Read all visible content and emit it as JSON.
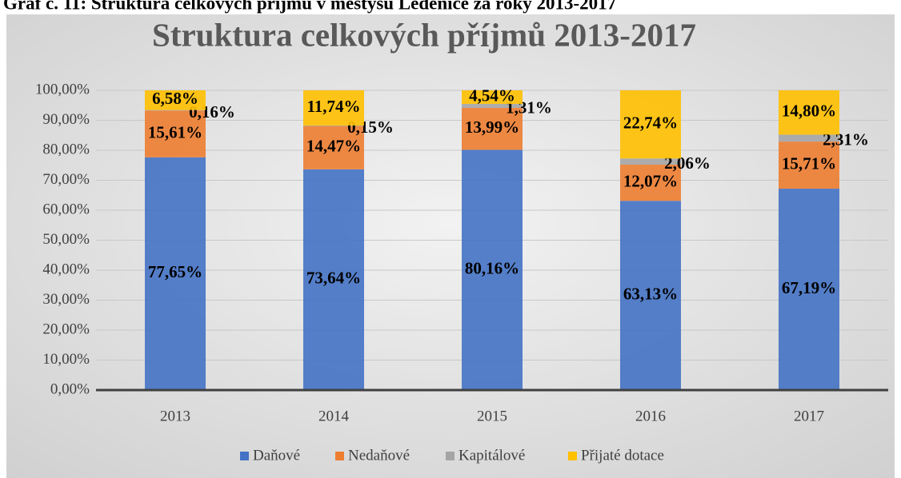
{
  "chart_data": {
    "type": "stacked_bar",
    "caption": "Graf č. 11: Struktura celkových příjmů v městysu Ledenice za roky 2013-2017",
    "title": "Struktura celkových příjmů 2013-2017",
    "categories": [
      "2013",
      "2014",
      "2015",
      "2016",
      "2017"
    ],
    "series": [
      {
        "name": "Daňové",
        "color": "#4472c4",
        "values": [
          77.65,
          73.64,
          80.16,
          63.13,
          67.19
        ],
        "value_labels": [
          "77,65%",
          "73,64%",
          "80,16%",
          "63,13%",
          "67,19%"
        ]
      },
      {
        "name": "Nedaňové",
        "color": "#ed7d31",
        "values": [
          15.61,
          14.47,
          13.99,
          12.07,
          15.71
        ],
        "value_labels": [
          "15,61%",
          "14,47%",
          "13,99%",
          "12,07%",
          "15,71%"
        ]
      },
      {
        "name": "Kapitálové",
        "color": "#a5a5a5",
        "values": [
          0.16,
          0.15,
          1.31,
          2.06,
          2.31
        ],
        "value_labels": [
          "0,16%",
          "0,15%",
          "1,31%",
          "2,06%",
          "2,31%"
        ]
      },
      {
        "name": "Přijaté dotace",
        "color": "#ffc000",
        "values": [
          6.58,
          11.74,
          4.54,
          22.74,
          14.8
        ],
        "value_labels": [
          "6,58%",
          "11,74%",
          "4,54%",
          "22,74%",
          "14,80%"
        ]
      }
    ],
    "ylim": [
      0,
      100
    ],
    "yticks": [
      {
        "value": 0,
        "label": "0,00%"
      },
      {
        "value": 10,
        "label": "10,00%"
      },
      {
        "value": 20,
        "label": "20,00%"
      },
      {
        "value": 30,
        "label": "30,00%"
      },
      {
        "value": 40,
        "label": "40,00%"
      },
      {
        "value": 50,
        "label": "50,00%"
      },
      {
        "value": 60,
        "label": "60,00%"
      },
      {
        "value": 70,
        "label": "70,00%"
      },
      {
        "value": 80,
        "label": "80,00%"
      },
      {
        "value": 90,
        "label": "90,00%"
      },
      {
        "value": 100,
        "label": "100,00%"
      }
    ],
    "grid": true,
    "legend": "bottom"
  }
}
